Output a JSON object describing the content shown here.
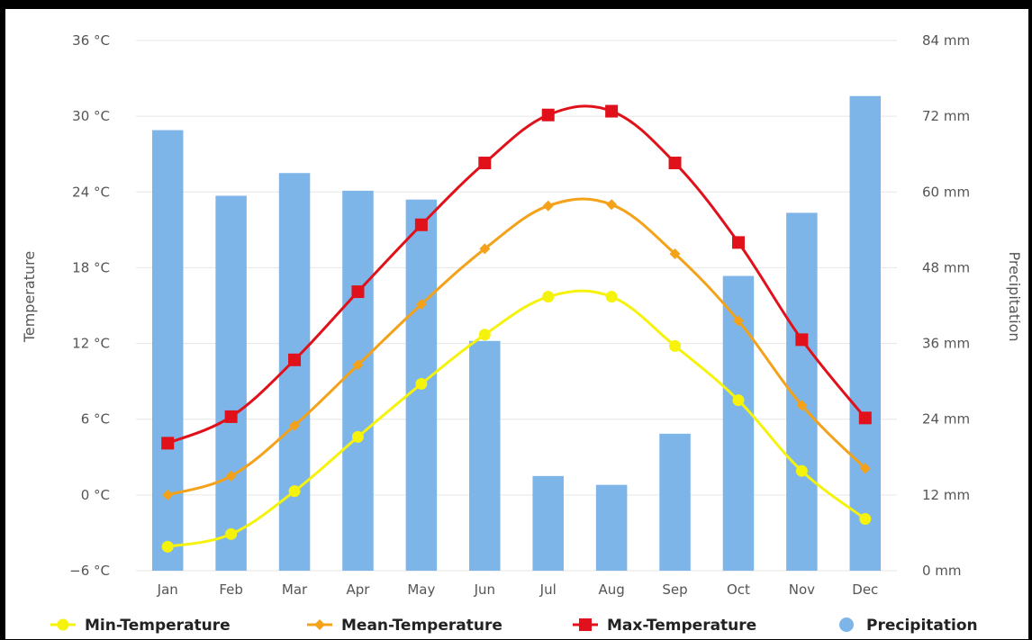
{
  "chart_data": {
    "type": "bar",
    "categories": [
      "Jan",
      "Feb",
      "Mar",
      "Apr",
      "May",
      "Jun",
      "Jul",
      "Aug",
      "Sep",
      "Oct",
      "Nov",
      "Dec"
    ],
    "xlabel": "",
    "y_left": {
      "label": "Temperature",
      "range": [
        -6,
        36
      ],
      "ticks": [
        -6,
        0,
        6,
        12,
        18,
        24,
        30,
        36
      ],
      "tick_labels": [
        "−6 °C",
        "0 °C",
        "6 °C",
        "12 °C",
        "18 °C",
        "24 °C",
        "30 °C",
        "36 °C"
      ]
    },
    "y_right": {
      "label": "Precipitation",
      "range": [
        0,
        84
      ],
      "ticks": [
        0,
        12,
        24,
        36,
        48,
        60,
        72,
        84
      ],
      "tick_labels": [
        "0 mm",
        "12 mm",
        "24 mm",
        "36 mm",
        "48 mm",
        "60 mm",
        "72 mm",
        "84 mm"
      ]
    },
    "grid": true,
    "legend_position": "bottom",
    "series": [
      {
        "name": "Min-Temperature",
        "type": "line",
        "axis": "left",
        "marker": "circle",
        "color": "#f5f20c",
        "values": [
          -4.1,
          -3.1,
          0.3,
          4.6,
          8.8,
          12.7,
          15.7,
          15.7,
          11.8,
          7.5,
          1.9,
          -1.9
        ]
      },
      {
        "name": "Mean-Temperature",
        "type": "line",
        "axis": "left",
        "marker": "diamond",
        "color": "#f3a21a",
        "values": [
          0.0,
          1.5,
          5.5,
          10.3,
          15.1,
          19.5,
          22.9,
          23.0,
          19.1,
          13.8,
          7.1,
          2.1
        ]
      },
      {
        "name": "Max-Temperature",
        "type": "line",
        "axis": "left",
        "marker": "square",
        "color": "#e0111a",
        "values": [
          4.1,
          6.2,
          10.7,
          16.1,
          21.4,
          26.3,
          30.1,
          30.4,
          26.3,
          20.0,
          12.3,
          6.1
        ]
      },
      {
        "name": "Precipitation",
        "type": "bar",
        "axis": "right",
        "marker": "circle",
        "color": "#7eb5e8",
        "values": [
          69.8,
          59.4,
          63.0,
          60.2,
          58.8,
          36.4,
          15.0,
          13.6,
          21.7,
          46.7,
          56.7,
          75.2
        ]
      }
    ]
  }
}
